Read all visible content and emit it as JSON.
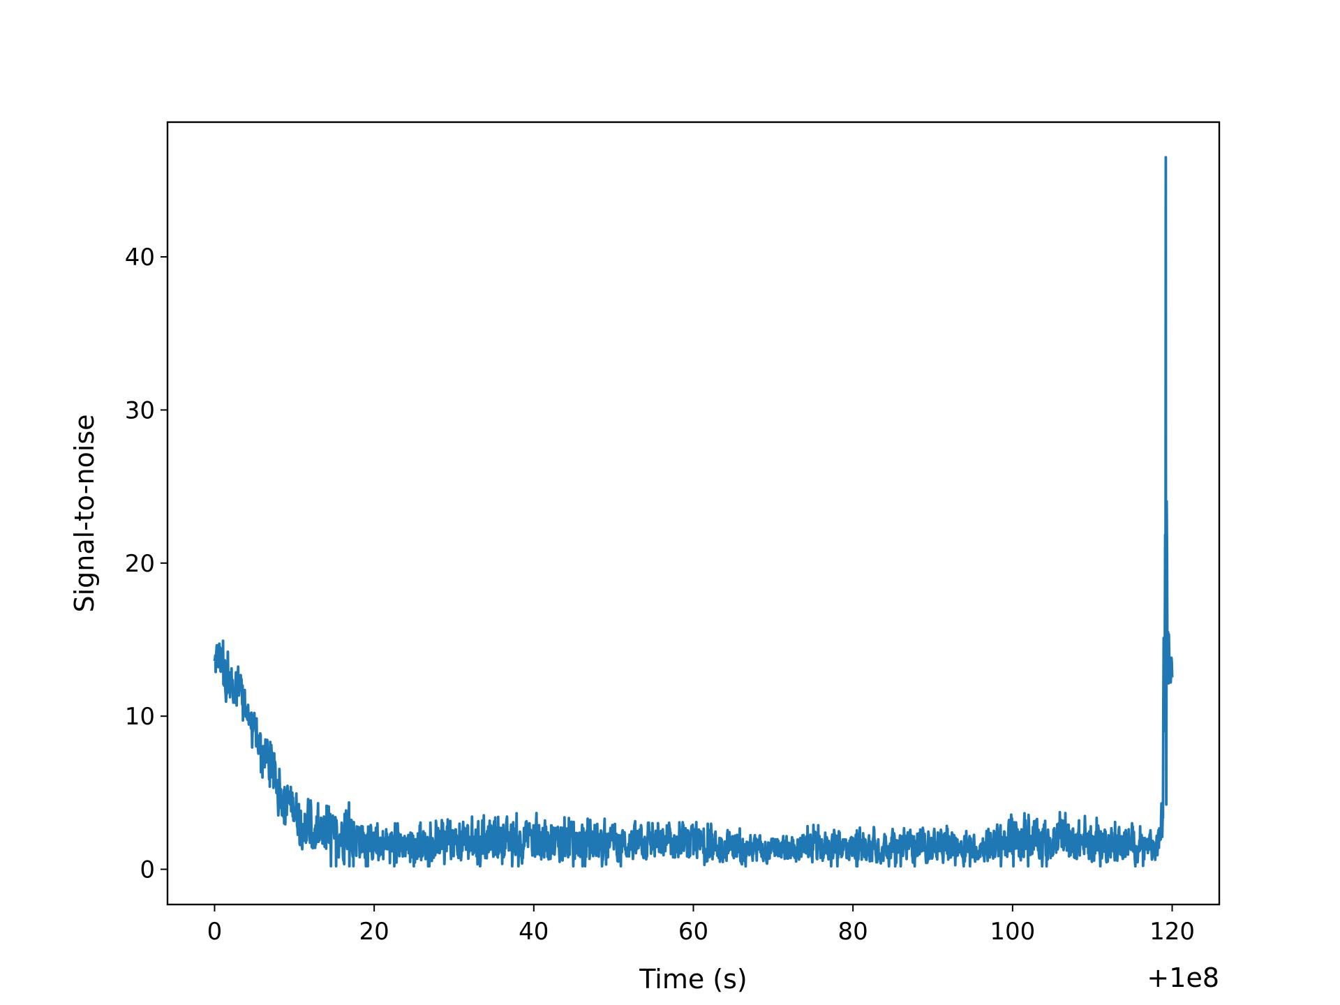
{
  "chart_data": {
    "type": "line",
    "title": "",
    "xlabel": "Time (s)",
    "ylabel": "Signal-to-noise",
    "x_offset_label": "+1e8",
    "xlim": [
      -5.9,
      125.9
    ],
    "ylim": [
      -2.3,
      48.8
    ],
    "xticks": [
      0,
      20,
      40,
      60,
      80,
      100,
      120
    ],
    "xtick_labels": [
      "0",
      "20",
      "40",
      "60",
      "80",
      "100",
      "120"
    ],
    "yticks": [
      0,
      10,
      20,
      30,
      40
    ],
    "ytick_labels": [
      "0",
      "10",
      "20",
      "30",
      "40"
    ],
    "grid": false,
    "legend": false,
    "series": [
      {
        "color": "#1f77b4",
        "x": [
          0,
          0.5,
          1,
          2,
          3,
          4,
          5,
          6,
          7,
          8,
          9,
          10,
          11,
          12,
          13,
          15,
          17,
          20,
          25,
          30,
          35,
          40,
          45,
          50,
          55,
          60,
          65,
          70,
          75,
          80,
          85,
          90,
          95,
          100,
          105,
          110,
          115,
          118,
          118.8,
          119.2,
          119.4,
          119.6,
          120
        ],
        "y": [
          13.5,
          14.8,
          13.2,
          12.3,
          12.5,
          11.0,
          9.5,
          8.0,
          7.0,
          5.3,
          4.8,
          4.3,
          3.6,
          3.0,
          2.4,
          2.2,
          2.0,
          1.8,
          1.5,
          1.5,
          1.6,
          1.5,
          1.5,
          1.4,
          1.4,
          1.5,
          1.3,
          1.2,
          1.4,
          1.3,
          1.4,
          1.4,
          1.3,
          1.6,
          1.5,
          1.4,
          1.3,
          1.4,
          3.0,
          46.5,
          14.0,
          15.5,
          12.5
        ],
        "y_min_envelope": [
          11.5,
          12.0,
          11.0,
          10.3,
          10.5,
          9.0,
          7.5,
          6.0,
          5.0,
          3.5,
          2.8,
          2.3,
          1.3,
          0.3,
          0.2,
          0.2,
          0.2,
          0.2,
          0.2,
          0.2,
          0.2,
          0.2,
          0.2,
          0.2,
          0.2,
          0.2,
          0.2,
          0.2,
          0.2,
          0.2,
          0.2,
          0.2,
          0.2,
          0.2,
          0.2,
          0.2,
          0.2,
          0.2,
          1.0,
          1.0,
          11.5,
          12.0,
          11.6
        ],
        "y_max_envelope": [
          15.0,
          16.0,
          15.0,
          13.8,
          14.0,
          12.2,
          10.3,
          9.3,
          9.2,
          6.6,
          6.2,
          5.9,
          4.8,
          4.5,
          4.3,
          4.0,
          4.7,
          3.0,
          3.0,
          3.3,
          3.6,
          3.7,
          3.3,
          3.3,
          3.0,
          3.1,
          2.8,
          2.3,
          2.9,
          2.7,
          2.8,
          2.9,
          2.7,
          3.6,
          3.8,
          3.4,
          3.0,
          2.4,
          4.7,
          46.5,
          16.5,
          16.2,
          13.8
        ]
      }
    ]
  }
}
